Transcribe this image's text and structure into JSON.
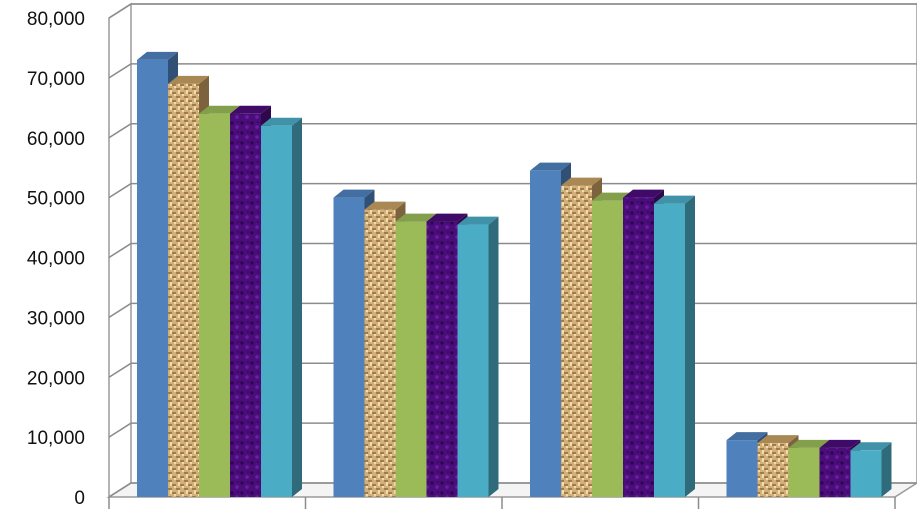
{
  "chart_data": {
    "type": "bar",
    "style": "3d-clustered-column",
    "categories": [
      "",
      "",
      "",
      ""
    ],
    "series": [
      {
        "values": [
          73000,
          50000,
          54500,
          9500
        ],
        "color": "#4f81bd",
        "fill": "solid"
      },
      {
        "values": [
          69000,
          48000,
          52000,
          9000
        ],
        "color": "#c8a063",
        "fill": "woven-texture"
      },
      {
        "values": [
          64000,
          46000,
          49500,
          8200
        ],
        "color": "#9bbb59",
        "fill": "solid"
      },
      {
        "values": [
          64000,
          46000,
          50000,
          8200
        ],
        "color": "#4b0d7a",
        "fill": "dark-texture"
      },
      {
        "values": [
          62000,
          45500,
          49000,
          7800
        ],
        "color": "#4bacc6",
        "fill": "solid"
      }
    ],
    "ylim": [
      0,
      80000
    ],
    "y_ticks": [
      "0",
      "10,000",
      "20,000",
      "30,000",
      "40,000",
      "50,000",
      "60,000",
      "70,000",
      "80,000"
    ],
    "y_tick_values": [
      0,
      10000,
      20000,
      30000,
      40000,
      50000,
      60000,
      70000,
      80000
    ],
    "grid": true,
    "legend": "none",
    "title": "",
    "xlabel": "",
    "ylabel": ""
  }
}
